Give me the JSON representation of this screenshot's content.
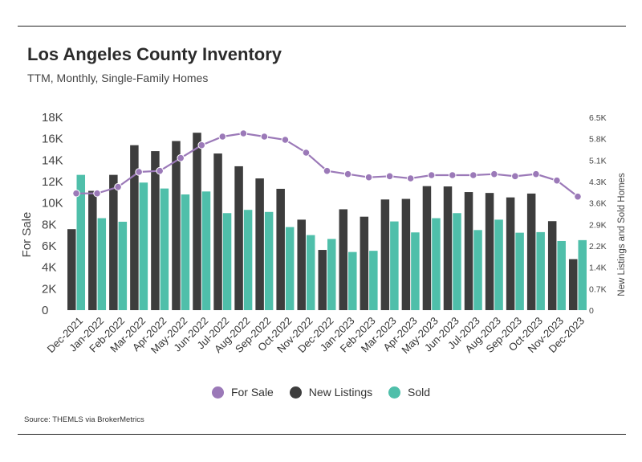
{
  "title": "Los Angeles County Inventory",
  "subtitle": "TTM, Monthly, Single-Family Homes",
  "source": "Source:  THEMLS via BrokerMetrics",
  "colors": {
    "for_sale": "#9b79b8",
    "new_listings": "#3d3d3d",
    "sold": "#4fbfaa"
  },
  "chart_data": {
    "type": "bar",
    "title": "Los Angeles County Inventory",
    "subtitle": "TTM, Monthly, Single-Family Homes",
    "categories": [
      "Dec-2021",
      "Jan-2022",
      "Feb-2022",
      "Mar-2022",
      "Apr-2022",
      "May-2022",
      "Jun-2022",
      "Jul-2022",
      "Aug-2022",
      "Sep-2022",
      "Oct-2022",
      "Nov-2022",
      "Dec-2022",
      "Jan-2023",
      "Feb-2023",
      "Mar-2023",
      "Apr-2023",
      "May-2023",
      "Jun-2023",
      "Jul-2023",
      "Aug-2023",
      "Sep-2023",
      "Oct-2023",
      "Nov-2023",
      "Dec-2023"
    ],
    "ylabel_left": "For Sale",
    "ylabel_right": "New Listings and Sold Homes",
    "ylim_left": [
      0,
      18000
    ],
    "ylim_right": [
      0,
      6500
    ],
    "yticks_left": [
      "0",
      "2K",
      "4K",
      "6K",
      "8K",
      "10K",
      "12K",
      "14K",
      "16K",
      "18K"
    ],
    "yticks_right": [
      "0",
      "0.7K",
      "1.4K",
      "2.2K",
      "2.9K",
      "3.6K",
      "4.3K",
      "5.1K",
      "5.8K",
      "6.5K"
    ],
    "grid": false,
    "legend_position": "bottom",
    "series": [
      {
        "name": "For Sale",
        "type": "line",
        "axis": "left",
        "values": [
          10900,
          10900,
          11500,
          12900,
          13000,
          14200,
          15400,
          16200,
          16500,
          16200,
          15900,
          14700,
          13000,
          12700,
          12400,
          12500,
          12300,
          12600,
          12600,
          12600,
          12700,
          12500,
          12700,
          12100,
          10600
        ]
      },
      {
        "name": "New Listings",
        "type": "bar",
        "axis": "right",
        "values": [
          2730,
          4020,
          4560,
          5560,
          5360,
          5700,
          5980,
          5280,
          4850,
          4440,
          4090,
          3050,
          2030,
          3400,
          3150,
          3730,
          3750,
          4180,
          4170,
          3980,
          3950,
          3800,
          3930,
          3000,
          1720
        ]
      },
      {
        "name": "Sold",
        "type": "bar",
        "axis": "right",
        "values": [
          4560,
          3100,
          2980,
          4300,
          4100,
          3900,
          4000,
          3270,
          3380,
          3310,
          2800,
          2530,
          2400,
          1960,
          2000,
          2990,
          2620,
          3100,
          3270,
          2700,
          3050,
          2610,
          2630,
          2330,
          2360
        ]
      }
    ]
  }
}
